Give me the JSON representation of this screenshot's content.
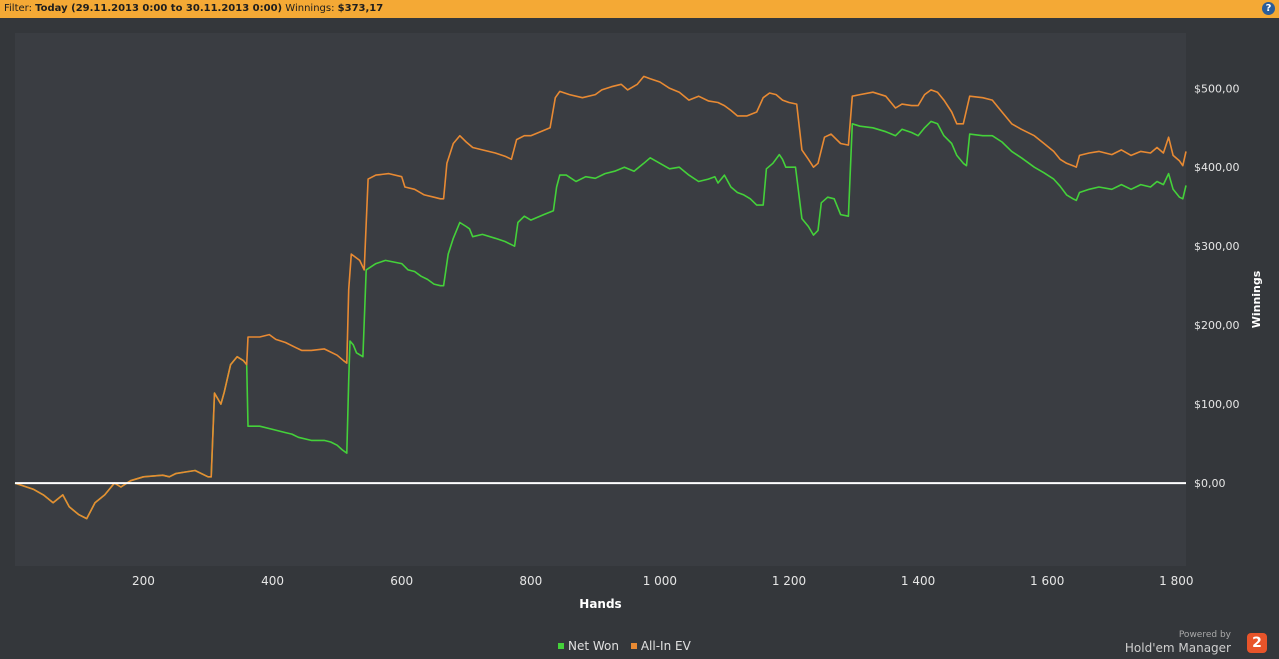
{
  "filter_bar": {
    "prefix": "Filter:",
    "range": "Today (29.11.2013 0:00 to 30.11.2013 0:00)",
    "winnings_label": "Winnings:",
    "winnings_value": "$373,17",
    "help": "?"
  },
  "chart_data": {
    "type": "line",
    "xlabel": "Hands",
    "ylabel": "Winnings",
    "xlim": [
      1,
      1815
    ],
    "ylim": [
      -105,
      570
    ],
    "x_ticks": [
      200,
      400,
      600,
      800,
      1000,
      1200,
      1400,
      1600,
      1800
    ],
    "x_tick_labels": [
      "200",
      "400",
      "600",
      "800",
      "1 000",
      "1 200",
      "1 400",
      "1 600",
      "1 800"
    ],
    "y_ticks": [
      0,
      100,
      200,
      300,
      400,
      500
    ],
    "y_tick_labels": [
      "$0,00",
      "$100,00",
      "$200,00",
      "$300,00",
      "$400,00",
      "$500,00"
    ],
    "grid": true,
    "legend_position": "bottom-center",
    "series": [
      {
        "name": "Net Won",
        "color": "#44d13a",
        "points": [
          [
            1,
            0
          ],
          [
            30,
            -8
          ],
          [
            45,
            -15
          ],
          [
            60,
            -25
          ],
          [
            75,
            -15
          ],
          [
            85,
            -30
          ],
          [
            100,
            -40
          ],
          [
            112,
            -45
          ],
          [
            125,
            -25
          ],
          [
            140,
            -15
          ],
          [
            150,
            -5
          ],
          [
            155,
            0
          ],
          [
            165,
            -5
          ],
          [
            180,
            3
          ],
          [
            200,
            8
          ],
          [
            230,
            10
          ],
          [
            240,
            8
          ],
          [
            250,
            12
          ],
          [
            265,
            14
          ],
          [
            280,
            16
          ],
          [
            300,
            8
          ],
          [
            305,
            8
          ],
          [
            310,
            114
          ],
          [
            320,
            100
          ],
          [
            325,
            115
          ],
          [
            335,
            150
          ],
          [
            345,
            160
          ],
          [
            355,
            155
          ],
          [
            360,
            150
          ],
          [
            362,
            72
          ],
          [
            380,
            72
          ],
          [
            400,
            68
          ],
          [
            420,
            64
          ],
          [
            430,
            62
          ],
          [
            440,
            58
          ],
          [
            460,
            54
          ],
          [
            480,
            54
          ],
          [
            490,
            52
          ],
          [
            500,
            48
          ],
          [
            508,
            42
          ],
          [
            515,
            38
          ],
          [
            518,
            130
          ],
          [
            520,
            180
          ],
          [
            525,
            175
          ],
          [
            530,
            165
          ],
          [
            540,
            160
          ],
          [
            545,
            270
          ],
          [
            560,
            278
          ],
          [
            575,
            282
          ],
          [
            600,
            278
          ],
          [
            610,
            270
          ],
          [
            620,
            268
          ],
          [
            630,
            262
          ],
          [
            640,
            258
          ],
          [
            650,
            252
          ],
          [
            660,
            250
          ],
          [
            665,
            250
          ],
          [
            672,
            290
          ],
          [
            680,
            310
          ],
          [
            690,
            330
          ],
          [
            700,
            325
          ],
          [
            705,
            322
          ],
          [
            710,
            312
          ],
          [
            725,
            315
          ],
          [
            745,
            310
          ],
          [
            760,
            306
          ],
          [
            775,
            300
          ],
          [
            780,
            330
          ],
          [
            790,
            338
          ],
          [
            800,
            333
          ],
          [
            820,
            340
          ],
          [
            835,
            345
          ],
          [
            840,
            375
          ],
          [
            845,
            390
          ],
          [
            855,
            390
          ],
          [
            870,
            382
          ],
          [
            885,
            388
          ],
          [
            900,
            386
          ],
          [
            915,
            392
          ],
          [
            930,
            395
          ],
          [
            945,
            400
          ],
          [
            960,
            395
          ],
          [
            975,
            405
          ],
          [
            985,
            412
          ],
          [
            1000,
            405
          ],
          [
            1015,
            398
          ],
          [
            1030,
            400
          ],
          [
            1045,
            390
          ],
          [
            1060,
            382
          ],
          [
            1075,
            385
          ],
          [
            1085,
            388
          ],
          [
            1090,
            380
          ],
          [
            1100,
            390
          ],
          [
            1110,
            375
          ],
          [
            1120,
            368
          ],
          [
            1130,
            365
          ],
          [
            1140,
            360
          ],
          [
            1150,
            352
          ],
          [
            1160,
            352
          ],
          [
            1165,
            398
          ],
          [
            1175,
            405
          ],
          [
            1185,
            416
          ],
          [
            1190,
            410
          ],
          [
            1195,
            400
          ],
          [
            1210,
            400
          ],
          [
            1220,
            335
          ],
          [
            1230,
            325
          ],
          [
            1238,
            314
          ],
          [
            1245,
            320
          ],
          [
            1250,
            355
          ],
          [
            1260,
            362
          ],
          [
            1270,
            360
          ],
          [
            1280,
            340
          ],
          [
            1292,
            338
          ],
          [
            1298,
            455
          ],
          [
            1310,
            452
          ],
          [
            1330,
            450
          ],
          [
            1350,
            445
          ],
          [
            1365,
            440
          ],
          [
            1375,
            448
          ],
          [
            1390,
            444
          ],
          [
            1400,
            440
          ],
          [
            1410,
            450
          ],
          [
            1420,
            458
          ],
          [
            1430,
            455
          ],
          [
            1440,
            440
          ],
          [
            1452,
            430
          ],
          [
            1460,
            415
          ],
          [
            1470,
            405
          ],
          [
            1475,
            402
          ],
          [
            1480,
            442
          ],
          [
            1500,
            440
          ],
          [
            1515,
            440
          ],
          [
            1530,
            432
          ],
          [
            1545,
            420
          ],
          [
            1560,
            412
          ],
          [
            1580,
            400
          ],
          [
            1595,
            393
          ],
          [
            1610,
            385
          ],
          [
            1620,
            376
          ],
          [
            1630,
            365
          ],
          [
            1640,
            360
          ],
          [
            1645,
            358
          ],
          [
            1650,
            368
          ],
          [
            1665,
            372
          ],
          [
            1680,
            375
          ],
          [
            1700,
            372
          ],
          [
            1715,
            378
          ],
          [
            1730,
            372
          ],
          [
            1745,
            378
          ],
          [
            1760,
            375
          ],
          [
            1770,
            382
          ],
          [
            1780,
            378
          ],
          [
            1788,
            392
          ],
          [
            1795,
            372
          ],
          [
            1805,
            362
          ],
          [
            1810,
            360
          ],
          [
            1815,
            377
          ]
        ]
      },
      {
        "name": "All-In EV",
        "color": "#e88a33",
        "points": [
          [
            1,
            0
          ],
          [
            30,
            -8
          ],
          [
            45,
            -15
          ],
          [
            60,
            -25
          ],
          [
            75,
            -15
          ],
          [
            85,
            -30
          ],
          [
            100,
            -40
          ],
          [
            112,
            -45
          ],
          [
            125,
            -25
          ],
          [
            140,
            -15
          ],
          [
            150,
            -5
          ],
          [
            155,
            0
          ],
          [
            165,
            -5
          ],
          [
            180,
            3
          ],
          [
            200,
            8
          ],
          [
            230,
            10
          ],
          [
            240,
            8
          ],
          [
            250,
            12
          ],
          [
            265,
            14
          ],
          [
            280,
            16
          ],
          [
            300,
            8
          ],
          [
            305,
            8
          ],
          [
            310,
            114
          ],
          [
            320,
            100
          ],
          [
            325,
            115
          ],
          [
            335,
            150
          ],
          [
            345,
            160
          ],
          [
            355,
            155
          ],
          [
            360,
            150
          ],
          [
            362,
            185
          ],
          [
            380,
            185
          ],
          [
            395,
            188
          ],
          [
            405,
            182
          ],
          [
            420,
            178
          ],
          [
            435,
            172
          ],
          [
            445,
            168
          ],
          [
            460,
            168
          ],
          [
            480,
            170
          ],
          [
            500,
            162
          ],
          [
            510,
            155
          ],
          [
            515,
            152
          ],
          [
            518,
            245
          ],
          [
            522,
            290
          ],
          [
            530,
            285
          ],
          [
            535,
            282
          ],
          [
            542,
            270
          ],
          [
            548,
            385
          ],
          [
            560,
            390
          ],
          [
            580,
            392
          ],
          [
            600,
            388
          ],
          [
            605,
            375
          ],
          [
            620,
            372
          ],
          [
            635,
            365
          ],
          [
            650,
            362
          ],
          [
            660,
            360
          ],
          [
            665,
            360
          ],
          [
            670,
            405
          ],
          [
            680,
            430
          ],
          [
            690,
            440
          ],
          [
            700,
            432
          ],
          [
            710,
            425
          ],
          [
            725,
            422
          ],
          [
            745,
            418
          ],
          [
            760,
            414
          ],
          [
            770,
            410
          ],
          [
            778,
            435
          ],
          [
            790,
            440
          ],
          [
            800,
            440
          ],
          [
            815,
            445
          ],
          [
            830,
            450
          ],
          [
            838,
            488
          ],
          [
            845,
            496
          ],
          [
            860,
            492
          ],
          [
            880,
            488
          ],
          [
            900,
            492
          ],
          [
            910,
            498
          ],
          [
            925,
            502
          ],
          [
            940,
            505
          ],
          [
            950,
            498
          ],
          [
            965,
            505
          ],
          [
            975,
            515
          ],
          [
            985,
            512
          ],
          [
            1000,
            508
          ],
          [
            1015,
            500
          ],
          [
            1030,
            495
          ],
          [
            1045,
            485
          ],
          [
            1060,
            490
          ],
          [
            1075,
            484
          ],
          [
            1090,
            482
          ],
          [
            1100,
            478
          ],
          [
            1110,
            472
          ],
          [
            1120,
            465
          ],
          [
            1135,
            465
          ],
          [
            1150,
            470
          ],
          [
            1160,
            488
          ],
          [
            1170,
            494
          ],
          [
            1180,
            492
          ],
          [
            1190,
            485
          ],
          [
            1200,
            482
          ],
          [
            1212,
            480
          ],
          [
            1220,
            422
          ],
          [
            1230,
            410
          ],
          [
            1238,
            400
          ],
          [
            1245,
            405
          ],
          [
            1255,
            438
          ],
          [
            1265,
            442
          ],
          [
            1280,
            430
          ],
          [
            1292,
            428
          ],
          [
            1298,
            490
          ],
          [
            1310,
            492
          ],
          [
            1330,
            495
          ],
          [
            1350,
            490
          ],
          [
            1365,
            475
          ],
          [
            1375,
            480
          ],
          [
            1390,
            478
          ],
          [
            1400,
            478
          ],
          [
            1410,
            492
          ],
          [
            1420,
            498
          ],
          [
            1430,
            495
          ],
          [
            1440,
            485
          ],
          [
            1452,
            470
          ],
          [
            1460,
            455
          ],
          [
            1470,
            455
          ],
          [
            1480,
            490
          ],
          [
            1500,
            488
          ],
          [
            1515,
            485
          ],
          [
            1530,
            470
          ],
          [
            1545,
            455
          ],
          [
            1560,
            448
          ],
          [
            1580,
            440
          ],
          [
            1595,
            430
          ],
          [
            1610,
            420
          ],
          [
            1620,
            410
          ],
          [
            1630,
            405
          ],
          [
            1640,
            402
          ],
          [
            1645,
            400
          ],
          [
            1650,
            415
          ],
          [
            1665,
            418
          ],
          [
            1680,
            420
          ],
          [
            1700,
            416
          ],
          [
            1715,
            422
          ],
          [
            1730,
            415
          ],
          [
            1745,
            420
          ],
          [
            1760,
            418
          ],
          [
            1770,
            425
          ],
          [
            1780,
            418
          ],
          [
            1788,
            438
          ],
          [
            1795,
            415
          ],
          [
            1805,
            408
          ],
          [
            1810,
            402
          ],
          [
            1815,
            420
          ]
        ]
      }
    ]
  },
  "legend": {
    "items": [
      {
        "label": "Net Won",
        "color": "#44d13a"
      },
      {
        "label": "All-In EV",
        "color": "#e88a33"
      }
    ]
  },
  "branding": {
    "powered_by": "Powered by",
    "product": "Hold'em Manager",
    "badge": "2"
  }
}
